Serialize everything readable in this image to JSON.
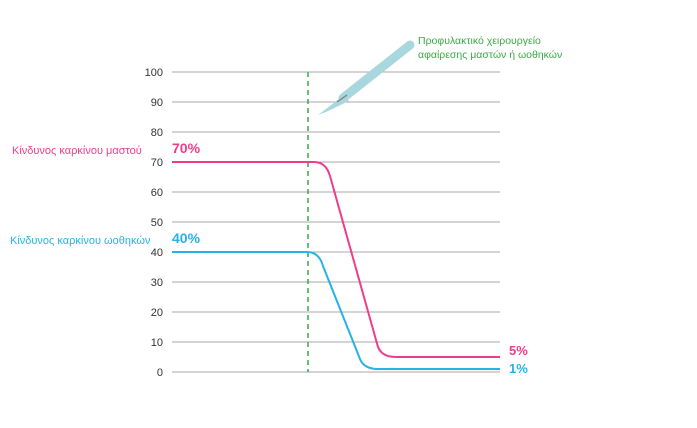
{
  "chart_data": {
    "type": "line",
    "ylim": [
      0,
      100
    ],
    "y_ticks": [
      "100",
      "90",
      "80",
      "70",
      "60",
      "50",
      "40",
      "30",
      "20",
      "10",
      "0"
    ],
    "grid": true,
    "event": {
      "label_line1": "Προφυλακτικό χειρουργείο",
      "label_line2": "αφαίρεσης μαστών ή ωοθηκών",
      "line_style": "dashed",
      "color": "#3aaa45",
      "icon": "scalpel-icon"
    },
    "series": [
      {
        "name": "Κίνδυνος καρκίνου μαστού",
        "color": "#ee3d8b",
        "start_label": "70%",
        "end_label": "5%",
        "values_before": 70,
        "values_after": 5
      },
      {
        "name": "Κίνδυνος καρκίνου ωοθηκών",
        "color": "#27b3e3",
        "start_label": "40%",
        "end_label": "1%",
        "values_before": 40,
        "values_after": 1
      }
    ]
  }
}
